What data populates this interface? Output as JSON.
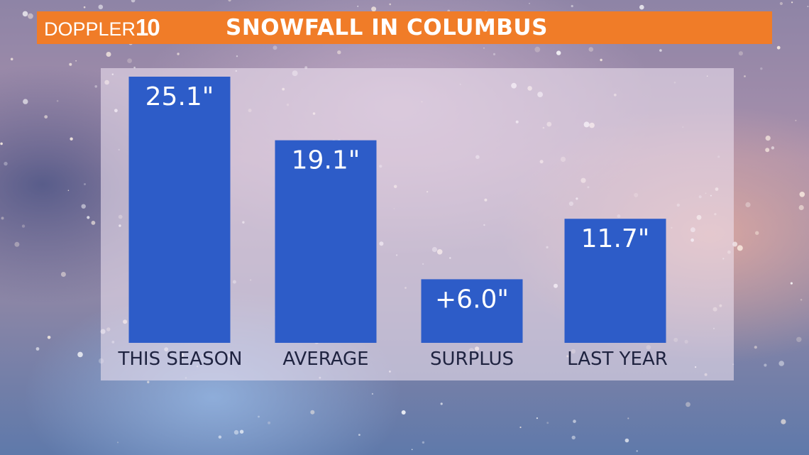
{
  "header": {
    "logo_text": "DOPPLER",
    "logo_number": "10",
    "title": "SNOWFALL IN COLUMBUS",
    "color": "#f07c28"
  },
  "chart_data": {
    "type": "bar",
    "categories": [
      "THIS SEASON",
      "AVERAGE",
      "SURPLUS",
      "LAST YEAR"
    ],
    "values": [
      25.1,
      19.1,
      6.0,
      11.7
    ],
    "value_labels": [
      "25.1\"",
      "19.1\"",
      "+6.0\"",
      "11.7\""
    ],
    "title": "SNOWFALL IN COLUMBUS",
    "xlabel": "",
    "ylabel": "",
    "bar_color": "#2d5cc8",
    "grid": false,
    "legend": "none"
  }
}
